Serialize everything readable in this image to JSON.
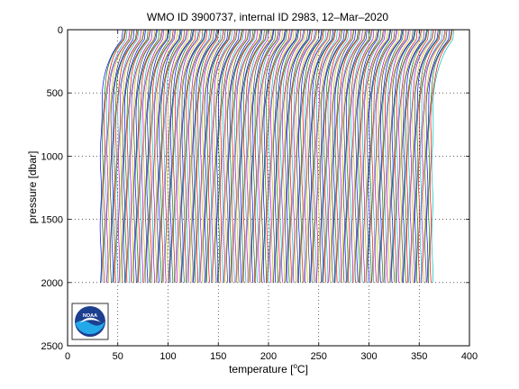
{
  "chart_data": {
    "type": "line",
    "title": "WMO ID 3900737, internal ID 2983, 12–Mar–2020",
    "xlabel_pre": "temperature [",
    "xlabel_unit": "C",
    "xlabel_post": "]",
    "degree_symbol": "o",
    "ylabel": "pressure [dbar]",
    "xlim": [
      0,
      400
    ],
    "ylim": [
      0,
      2500
    ],
    "y_reversed": true,
    "xticks": [
      0,
      50,
      100,
      150,
      200,
      250,
      300,
      350,
      400
    ],
    "yticks": [
      0,
      500,
      1000,
      1500,
      2000,
      2500
    ],
    "grid": "dotted",
    "description_of_series": "waterfall of temperature profiles, each offset progressively along x",
    "profile_count": 200,
    "profile_offset_start": 0,
    "profile_offset_end": 330,
    "profile_deep_temperature": 33,
    "profile_surface_temperature": 55,
    "profile_max_pressure": 2000,
    "series_colors": [
      "#0000ff",
      "#008000",
      "#ff0000",
      "#00bfbf",
      "#bf00bf",
      "#bfbf00",
      "#404040"
    ],
    "logo": {
      "text": "NOAA",
      "ring_color": "#1d3f8f",
      "water_color": "#23a8e8"
    }
  }
}
